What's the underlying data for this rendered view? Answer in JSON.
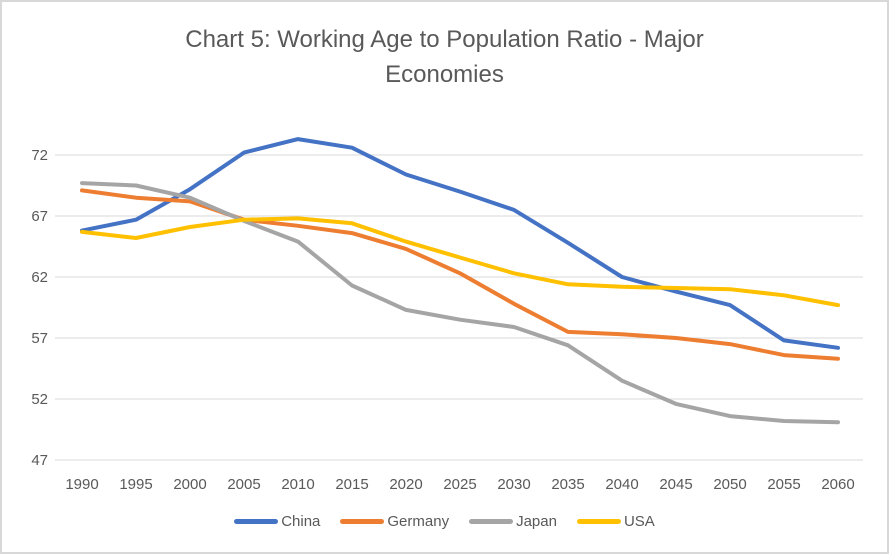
{
  "chart": {
    "title_display": "Chart 5: Working Age to Population Ratio - Major\nEconomies"
  },
  "chart_data": {
    "type": "line",
    "title": "Chart 5: Working Age to Population Ratio - Major Economies",
    "categories": [
      "1990",
      "1995",
      "2000",
      "2005",
      "2010",
      "2015",
      "2020",
      "2025",
      "2030",
      "2035",
      "2040",
      "2045",
      "2050",
      "2055",
      "2060"
    ],
    "series": [
      {
        "name": "China",
        "color": "#4472C4",
        "values": [
          65.8,
          66.7,
          69.2,
          72.2,
          73.3,
          72.6,
          70.4,
          69.0,
          67.5,
          64.8,
          62.0,
          60.8,
          59.7,
          56.8,
          56.2
        ]
      },
      {
        "name": "Germany",
        "color": "#ED7D31",
        "values": [
          69.1,
          68.5,
          68.2,
          66.7,
          66.2,
          65.6,
          64.3,
          62.3,
          59.8,
          57.5,
          57.3,
          57.0,
          56.5,
          55.6,
          55.3
        ]
      },
      {
        "name": "Japan",
        "color": "#A5A5A5",
        "values": [
          69.7,
          69.5,
          68.5,
          66.6,
          64.9,
          61.3,
          59.3,
          58.5,
          57.9,
          56.4,
          53.5,
          51.6,
          50.6,
          50.2,
          50.1
        ]
      },
      {
        "name": "USA",
        "color": "#FFC000",
        "values": [
          65.7,
          65.2,
          66.1,
          66.7,
          66.8,
          66.4,
          64.9,
          63.6,
          62.3,
          61.4,
          61.2,
          61.1,
          61.0,
          60.5,
          59.7
        ]
      }
    ],
    "ylim": [
      47,
      72
    ],
    "yticks": [
      47,
      52,
      57,
      62,
      67,
      72
    ],
    "grid": true,
    "legend_position": "bottom",
    "xlabel": "",
    "ylabel": ""
  },
  "colors": {
    "axis_text": "#595959",
    "gridline": "#D9D9D9",
    "title_text": "#595959",
    "frame_border": "#D8D8D8"
  }
}
